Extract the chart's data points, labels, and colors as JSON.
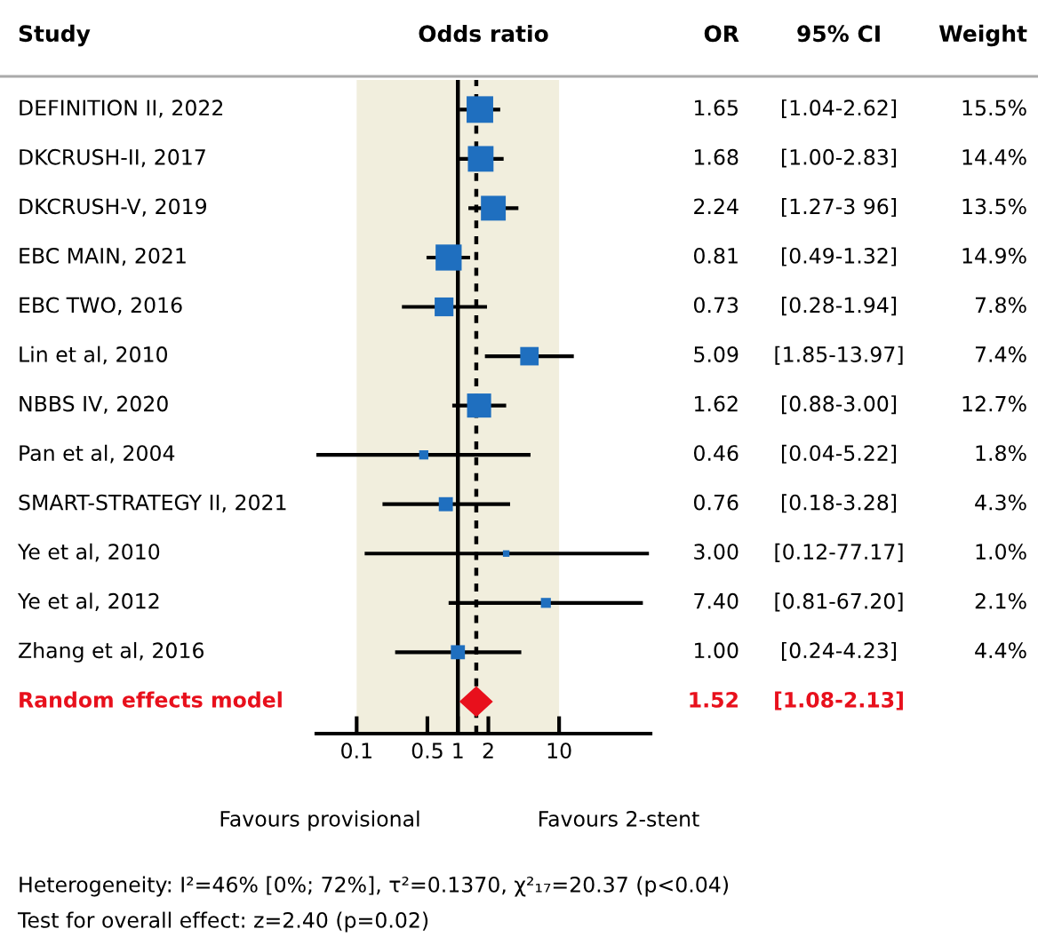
{
  "chart_data": [
    {
      "type": "bubble",
      "title": "Odds ratio",
      "ylabel": "Study",
      "orientation": "horizontal",
      "log": "x",
      "categories": [
        "DEFINITION II, 2022",
        "DKCRUSH-II, 2017",
        "DKCRUSH-V, 2019",
        "EBC MAIN, 2021",
        "EBC TWO, 2016",
        "Lin et al, 2010",
        "NBBS IV, 2020",
        "Pan et al, 2004",
        "SMART-STRATEGY II, 2021",
        "Ye et al, 2010",
        "Ye et al, 2012",
        "Zhang et al, 2016",
        "Random effects model"
      ],
      "series": [
        {
          "color": "#1f6fbf",
          "marker": "square",
          "values": [
            1.65,
            1.68,
            2.24,
            0.81,
            0.73,
            5.09,
            1.62,
            0.46,
            0.76,
            3.0,
            7.4,
            1.0,
            null
          ],
          "errors": [
            [
              1.04,
              2.62
            ],
            [
              1.0,
              2.83
            ],
            [
              1.27,
              3.96
            ],
            [
              0.49,
              1.32
            ],
            [
              0.28,
              1.94
            ],
            [
              1.85,
              13.97
            ],
            [
              0.88,
              3.0
            ],
            [
              0.04,
              5.22
            ],
            [
              0.18,
              3.28
            ],
            [
              0.12,
              77.17
            ],
            [
              0.81,
              67.2
            ],
            [
              0.24,
              4.23
            ],
            null
          ],
          "sizes": [
            1,
            0.93,
            0.87,
            0.96,
            0.5,
            0.48,
            0.82,
            0.12,
            0.28,
            0.06,
            0.14,
            0.28,
            null
          ]
        },
        {
          "color": "#e8101c",
          "marker": "diamond",
          "values": [
            null,
            null,
            null,
            null,
            null,
            null,
            null,
            null,
            null,
            null,
            null,
            null,
            1.52
          ],
          "errors": [
            null,
            null,
            null,
            null,
            null,
            null,
            null,
            null,
            null,
            null,
            null,
            null,
            [
              1.08,
              2.13
            ]
          ]
        }
      ],
      "value_labels": [
        "1.65",
        "1.68",
        "2.24",
        "0.81",
        "0.73",
        "5.09",
        "1.62",
        "0.46",
        "0.76",
        "3.00",
        "7.40",
        "1.00",
        "1.52"
      ],
      "xlim": [
        0.04,
        80
      ],
      "xticks": [
        0.1,
        0.5,
        1,
        2,
        10
      ],
      "bands": [
        {
          "axis": "x",
          "from": 0.1,
          "to": 10,
          "color": "#f1eedd"
        }
      ],
      "ref_lines": [
        {
          "axis": "x",
          "value": 1,
          "color": "#000000",
          "line_style": "solid"
        },
        {
          "axis": "x",
          "value": 1.52,
          "color": "#000000",
          "line_style": "dotted"
        }
      ],
      "annotations": [
        "Favours provisional",
        "Favours 2-stent",
        "Heterogeneity: I²=46% [0%; 72%], τ²=0.1370, χ²₁₇=20.37 (p<0.04)",
        "Test for overall effect: z=2.40 (p=0.02)"
      ]
    },
    {
      "type": "other",
      "annotations": [
        "OR",
        "95% CI",
        "[1.04-2.62]",
        "[1.00-2.83]",
        "[1.27-3 96]",
        "[0.49-1.32]",
        "[0.28-1.94]",
        "[1.85-13.97]",
        "[0.88-3.00]",
        "[0.04-5.22]",
        "[0.18-3.28]",
        "[0.12-77.17]",
        "[0.81-67.20]",
        "[0.24-4.23]",
        "[1.08-2.13]",
        "Weight",
        "15.5%",
        "14.4%",
        "13.5%",
        "14.9%",
        "7.8%",
        "7.4%",
        "12.7%",
        "1.8%",
        "4.3%",
        "1.0%",
        "2.1%",
        "4.4%"
      ]
    }
  ]
}
